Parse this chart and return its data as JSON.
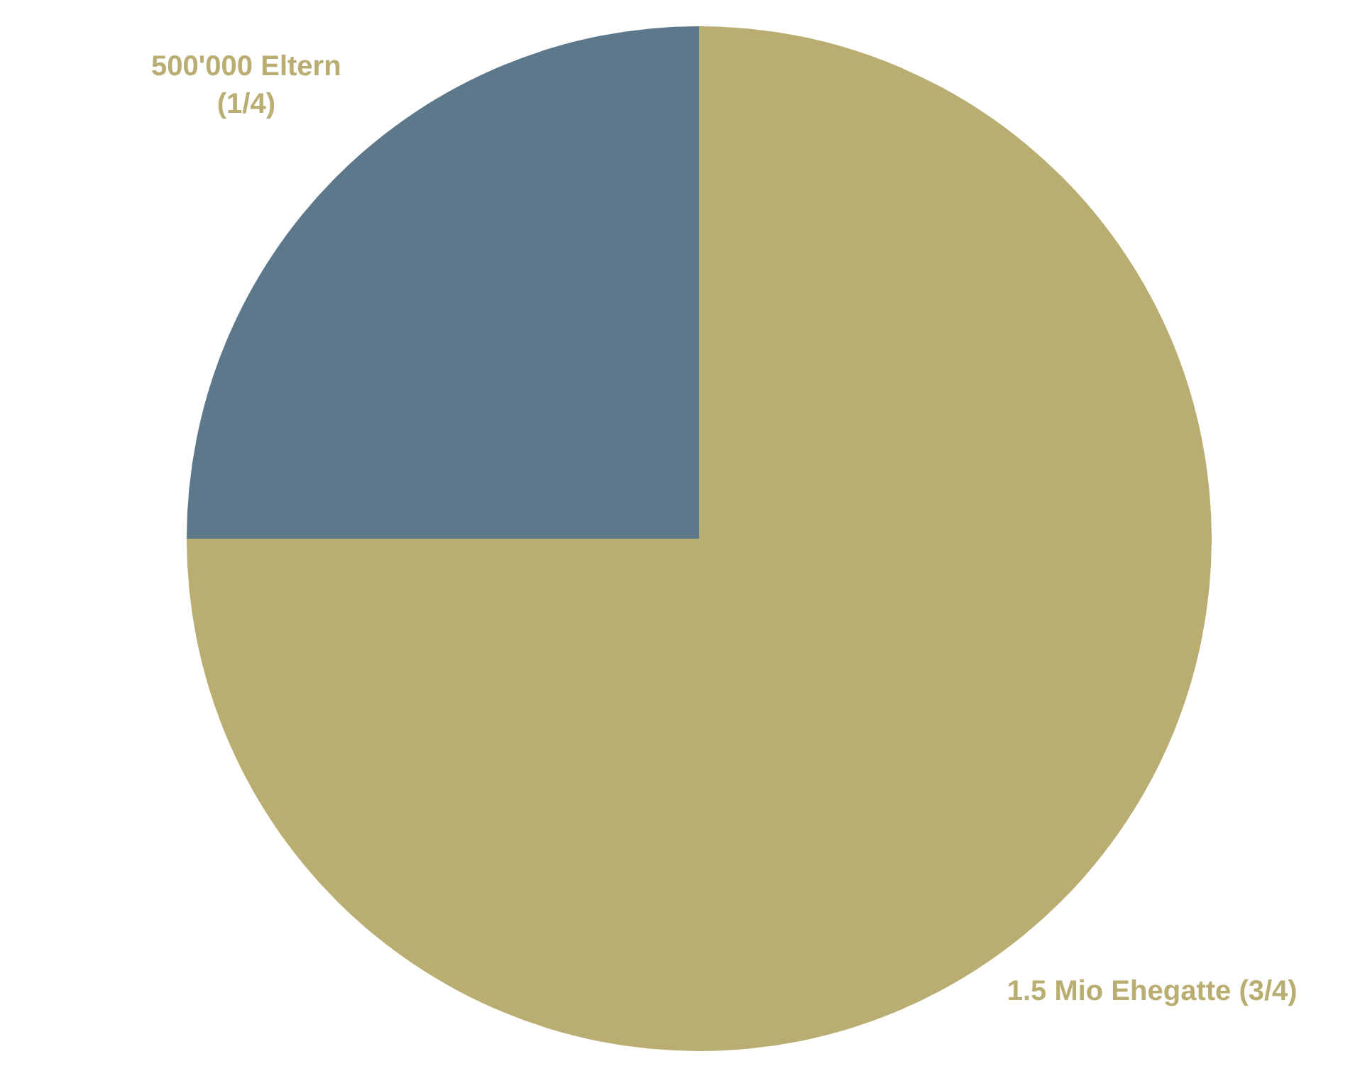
{
  "chart_data": {
    "type": "pie",
    "categories": [
      "1.5 Mio Ehegatte (3/4)",
      "500'000 Eltern\n(1/4)"
    ],
    "values": [
      1500000,
      500000
    ],
    "colors": [
      "#b9ad72",
      "#5d778b"
    ]
  }
}
